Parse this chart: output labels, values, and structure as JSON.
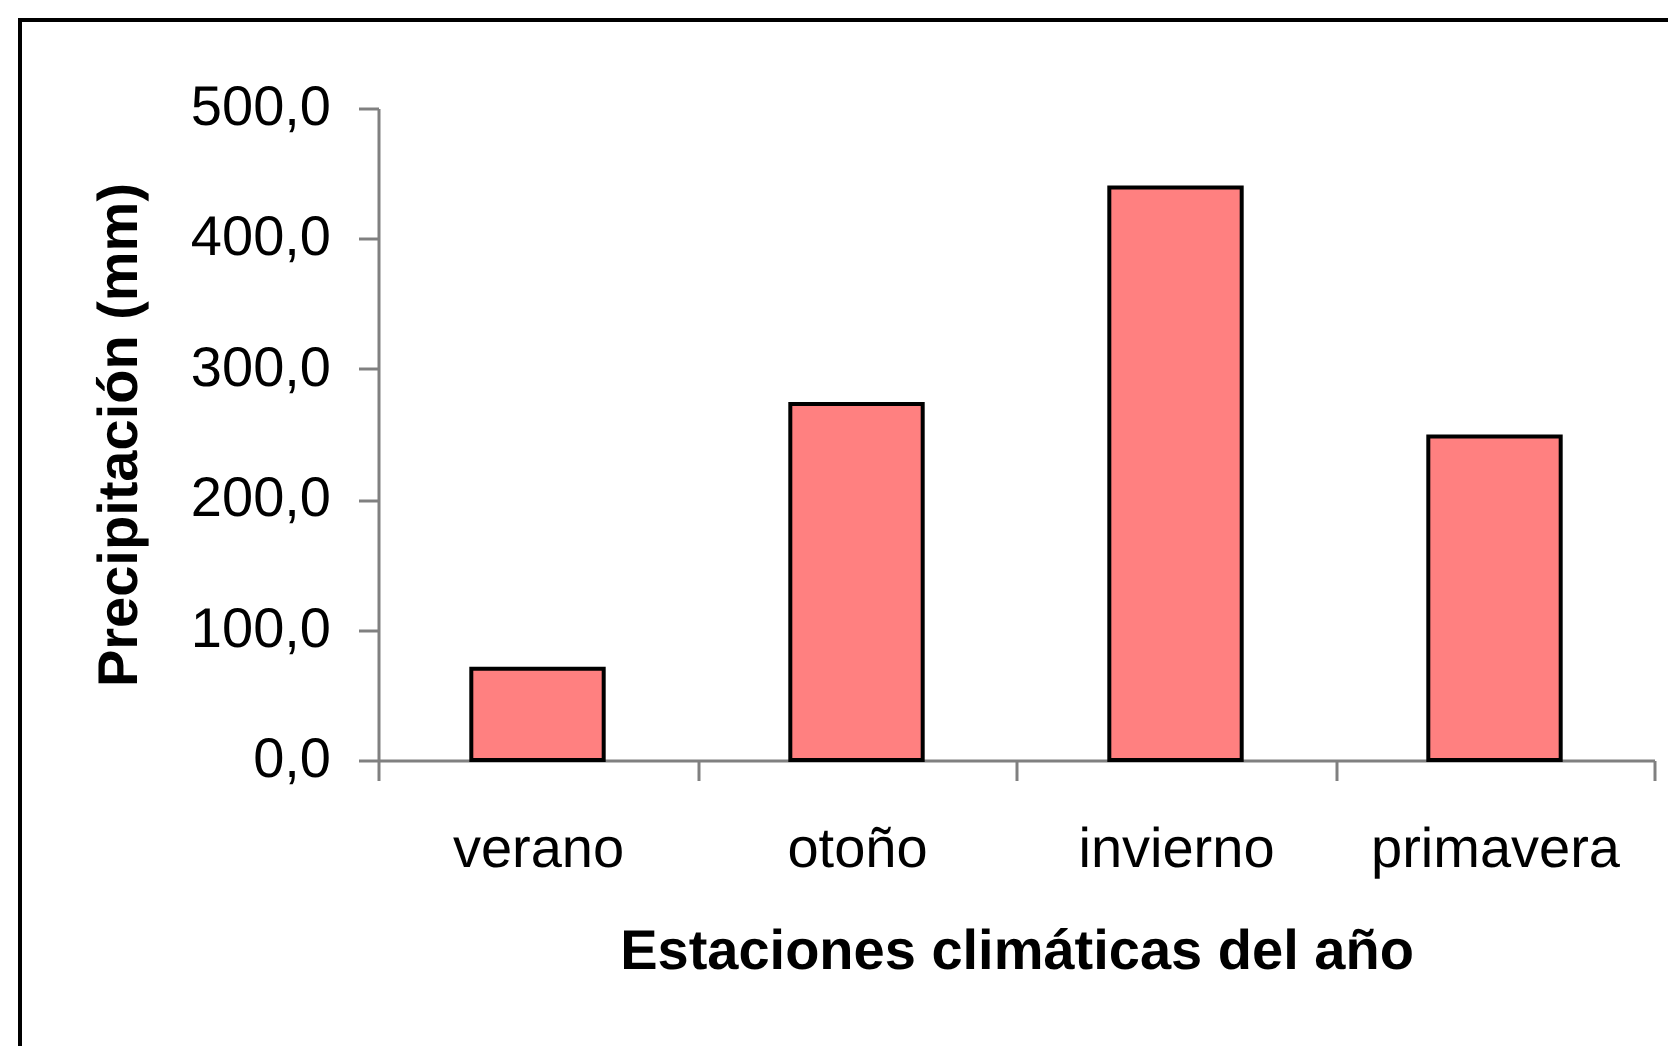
{
  "chart_data": {
    "type": "bar",
    "xlabel": "Estaciones climáticas del año",
    "ylabel": "Precipitación (mm)",
    "categories": [
      "verano",
      "otoño",
      "invierno",
      "primavera"
    ],
    "values": [
      70,
      273,
      439,
      248
    ],
    "color": "#ff8080",
    "ylim": [
      0,
      500
    ],
    "yticks": [
      {
        "value": 0,
        "label": "0,0"
      },
      {
        "value": 100,
        "label": "100,0"
      },
      {
        "value": 200,
        "label": "200,0"
      },
      {
        "value": 300,
        "label": "300,0"
      },
      {
        "value": 400,
        "label": "400,0"
      },
      {
        "value": 500,
        "label": "500,0"
      }
    ]
  }
}
